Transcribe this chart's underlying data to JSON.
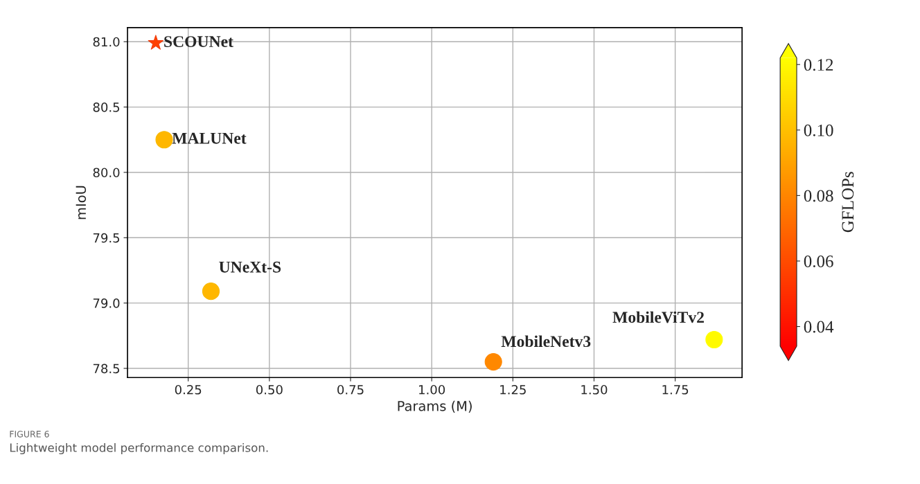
{
  "chart_data": {
    "type": "scatter",
    "xlabel": "Params (M)",
    "ylabel": "mIoU",
    "clabel": "GFLOPs",
    "xlim": [
      0.063,
      1.956
    ],
    "xticks": [
      {
        "value": 0.25,
        "label": "0.25"
      },
      {
        "value": 0.5,
        "label": "0.50"
      },
      {
        "value": 0.75,
        "label": "0.75"
      },
      {
        "value": 1.0,
        "label": "1.00"
      },
      {
        "value": 1.25,
        "label": "1.25"
      },
      {
        "value": 1.5,
        "label": "1.50"
      },
      {
        "value": 1.75,
        "label": "1.75"
      }
    ],
    "ylim": [
      78.43,
      81.108
    ],
    "yticks": [
      {
        "value": 78.5,
        "label": "78.5"
      },
      {
        "value": 79.0,
        "label": "79.0"
      },
      {
        "value": 79.5,
        "label": "79.5"
      },
      {
        "value": 80.0,
        "label": "80.0"
      },
      {
        "value": 80.5,
        "label": "80.5"
      },
      {
        "value": 81.0,
        "label": "81.0"
      }
    ],
    "clim": [
      0.034,
      0.122
    ],
    "cticks": [
      {
        "value": 0.04,
        "label": "0.04"
      },
      {
        "value": 0.06,
        "label": "0.06"
      },
      {
        "value": 0.08,
        "label": "0.08"
      },
      {
        "value": 0.1,
        "label": "0.10"
      },
      {
        "value": 0.12,
        "label": "0.12"
      }
    ],
    "grid": true,
    "legend": false,
    "series": [
      {
        "marker": "star",
        "x": [
          0.15
        ],
        "values": [
          80.99
        ],
        "cvalues": [
          0.056
        ],
        "colors": [
          "#f04010"
        ]
      },
      {
        "marker": "circle",
        "x": [
          0.176,
          0.32,
          1.19,
          1.87
        ],
        "values": [
          80.25,
          79.09,
          78.55,
          78.72
        ],
        "cvalues": [
          0.097,
          0.097,
          0.081,
          0.12
        ],
        "colors": [
          "#f8b800",
          "#f8b800",
          "#ff8800",
          "#ffff00"
        ]
      }
    ],
    "annotations": [
      {
        "text": "SCOUNet",
        "x": 0.15,
        "y": 80.99
      },
      {
        "text": "MALUNet",
        "x": 0.176,
        "y": 80.25
      },
      {
        "text": "UNeXt-S",
        "x": 0.32,
        "y": 79.09
      },
      {
        "text": "MobileNetv3",
        "x": 1.19,
        "y": 78.55
      },
      {
        "text": "MobileViTv2",
        "x": 1.87,
        "y": 78.72
      },
      "FIGURE 6",
      "Lightweight model performance comparison."
    ]
  }
}
